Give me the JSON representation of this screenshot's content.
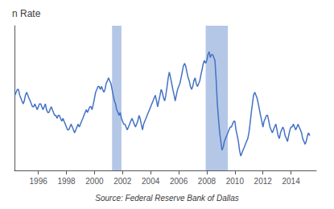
{
  "chart_data": {
    "type": "line",
    "title": "n Rate",
    "annotations": [
      "Source: Federal Reserve Bank of Dallas"
    ],
    "color": "#4472c4",
    "recession_bands": [
      [
        2001.25,
        2001.92
      ],
      [
        2007.92,
        2009.5
      ]
    ],
    "xlim": [
      1994.3,
      2015.8
    ],
    "ylim": [
      0.5,
      5.5
    ],
    "xticks": [
      1996,
      1998,
      2000,
      2002,
      2004,
      2006,
      2008,
      2010,
      2012,
      2014
    ],
    "tick_labels": "x",
    "grid": false,
    "x": [
      1994.33,
      1994.42,
      1994.5,
      1994.58,
      1994.67,
      1994.75,
      1994.83,
      1994.92,
      1995.0,
      1995.08,
      1995.17,
      1995.25,
      1995.33,
      1995.42,
      1995.5,
      1995.58,
      1995.67,
      1995.75,
      1995.83,
      1995.92,
      1996.0,
      1996.08,
      1996.17,
      1996.25,
      1996.33,
      1996.42,
      1996.5,
      1996.58,
      1996.67,
      1996.75,
      1996.83,
      1996.92,
      1997.0,
      1997.08,
      1997.17,
      1997.25,
      1997.33,
      1997.42,
      1997.5,
      1997.58,
      1997.67,
      1997.75,
      1997.83,
      1997.92,
      1998.0,
      1998.08,
      1998.17,
      1998.25,
      1998.33,
      1998.42,
      1998.5,
      1998.58,
      1998.67,
      1998.75,
      1998.83,
      1998.92,
      1999.0,
      1999.08,
      1999.17,
      1999.25,
      1999.33,
      1999.42,
      1999.5,
      1999.58,
      1999.67,
      1999.75,
      1999.83,
      1999.92,
      2000.0,
      2000.08,
      2000.17,
      2000.25,
      2000.33,
      2000.42,
      2000.5,
      2000.58,
      2000.67,
      2000.75,
      2000.83,
      2000.92,
      2001.0,
      2001.08,
      2001.17,
      2001.25,
      2001.33,
      2001.42,
      2001.5,
      2001.58,
      2001.67,
      2001.75,
      2001.83,
      2001.92,
      2002.0,
      2002.08,
      2002.17,
      2002.25,
      2002.33,
      2002.42,
      2002.5,
      2002.58,
      2002.67,
      2002.75,
      2002.83,
      2002.92,
      2003.0,
      2003.08,
      2003.17,
      2003.25,
      2003.33,
      2003.42,
      2003.5,
      2003.58,
      2003.67,
      2003.75,
      2003.83,
      2003.92,
      2004.0,
      2004.08,
      2004.17,
      2004.25,
      2004.33,
      2004.42,
      2004.5,
      2004.58,
      2004.67,
      2004.75,
      2004.83,
      2004.92,
      2005.0,
      2005.08,
      2005.17,
      2005.25,
      2005.33,
      2005.42,
      2005.5,
      2005.58,
      2005.67,
      2005.75,
      2005.83,
      2005.92,
      2006.0,
      2006.08,
      2006.17,
      2006.25,
      2006.33,
      2006.42,
      2006.5,
      2006.58,
      2006.67,
      2006.75,
      2006.83,
      2006.92,
      2007.0,
      2007.08,
      2007.17,
      2007.25,
      2007.33,
      2007.42,
      2007.5,
      2007.58,
      2007.67,
      2007.75,
      2007.83,
      2007.92,
      2008.0,
      2008.08,
      2008.17,
      2008.25,
      2008.33,
      2008.42,
      2008.5,
      2008.58,
      2008.67,
      2008.75,
      2008.83,
      2008.92,
      2009.0,
      2009.08,
      2009.17,
      2009.25,
      2009.33,
      2009.42,
      2009.5,
      2009.58,
      2009.67,
      2009.75,
      2009.83,
      2009.92,
      2010.0,
      2010.08,
      2010.17,
      2010.25,
      2010.33,
      2010.42,
      2010.5,
      2010.58,
      2010.67,
      2010.75,
      2010.83,
      2010.92,
      2011.0,
      2011.08,
      2011.17,
      2011.25,
      2011.33,
      2011.42,
      2011.5,
      2011.58,
      2011.67,
      2011.75,
      2011.83,
      2011.92,
      2012.0,
      2012.08,
      2012.17,
      2012.25,
      2012.33,
      2012.42,
      2012.5,
      2012.58,
      2012.67,
      2012.75,
      2012.83,
      2012.92,
      2013.0,
      2013.08,
      2013.17,
      2013.25,
      2013.33,
      2013.42,
      2013.5,
      2013.58,
      2013.67,
      2013.75,
      2013.83,
      2013.92,
      2014.0,
      2014.08,
      2014.17,
      2014.25,
      2014.33,
      2014.42,
      2014.5,
      2014.58,
      2014.67,
      2014.75,
      2014.83,
      2014.92,
      2015.0,
      2015.08,
      2015.17,
      2015.25,
      2015.33
    ],
    "values": [
      3.1,
      3.2,
      3.3,
      3.3,
      3.1,
      3.0,
      2.9,
      2.8,
      2.9,
      3.1,
      3.2,
      3.1,
      3.0,
      2.9,
      2.8,
      2.7,
      2.7,
      2.8,
      2.7,
      2.6,
      2.7,
      2.8,
      2.8,
      2.7,
      2.6,
      2.7,
      2.8,
      2.6,
      2.5,
      2.5,
      2.6,
      2.7,
      2.6,
      2.5,
      2.4,
      2.4,
      2.3,
      2.4,
      2.4,
      2.3,
      2.2,
      2.3,
      2.2,
      2.1,
      2.0,
      1.9,
      1.9,
      2.0,
      2.1,
      2.0,
      1.9,
      1.8,
      1.9,
      2.0,
      2.1,
      2.0,
      2.1,
      2.2,
      2.3,
      2.4,
      2.5,
      2.6,
      2.5,
      2.6,
      2.7,
      2.7,
      2.6,
      2.8,
      3.0,
      3.2,
      3.3,
      3.4,
      3.4,
      3.3,
      3.4,
      3.3,
      3.2,
      3.3,
      3.5,
      3.6,
      3.7,
      3.6,
      3.5,
      3.3,
      3.1,
      2.9,
      2.8,
      2.6,
      2.5,
      2.4,
      2.5,
      2.3,
      2.2,
      2.1,
      2.1,
      2.0,
      1.9,
      2.0,
      2.1,
      2.2,
      2.3,
      2.2,
      2.1,
      2.0,
      2.1,
      2.2,
      2.4,
      2.3,
      2.1,
      1.9,
      2.1,
      2.2,
      2.3,
      2.4,
      2.5,
      2.6,
      2.7,
      2.8,
      2.9,
      3.0,
      3.1,
      2.9,
      2.7,
      2.9,
      3.1,
      3.3,
      3.2,
      3.0,
      2.9,
      3.1,
      3.4,
      3.7,
      3.9,
      3.7,
      3.5,
      3.3,
      3.1,
      2.9,
      3.1,
      3.3,
      3.4,
      3.5,
      3.7,
      3.9,
      4.1,
      4.2,
      4.1,
      3.9,
      3.7,
      3.6,
      3.4,
      3.3,
      3.4,
      3.6,
      3.7,
      3.5,
      3.4,
      3.5,
      3.6,
      3.8,
      4.0,
      4.2,
      4.3,
      4.2,
      4.3,
      4.5,
      4.6,
      4.4,
      4.5,
      4.5,
      4.4,
      4.3,
      3.6,
      2.8,
      2.3,
      1.8,
      1.5,
      1.2,
      1.3,
      1.5,
      1.6,
      1.7,
      1.8,
      1.9,
      2.0,
      2.0,
      2.1,
      2.2,
      2.2,
      1.9,
      1.7,
      1.5,
      1.2,
      1.0,
      1.1,
      1.2,
      1.3,
      1.4,
      1.5,
      1.6,
      1.8,
      2.1,
      2.5,
      2.8,
      3.1,
      3.2,
      3.1,
      3.0,
      2.8,
      2.6,
      2.4,
      2.2,
      2.0,
      2.2,
      2.3,
      2.4,
      2.4,
      2.2,
      2.0,
      1.9,
      1.8,
      1.9,
      2.0,
      2.1,
      1.9,
      1.7,
      1.6,
      1.8,
      1.9,
      2.0,
      1.9,
      1.7,
      1.6,
      1.5,
      1.7,
      1.9,
      2.0,
      2.0,
      2.1,
      2.0,
      1.9,
      2.0,
      2.1,
      2.0,
      1.9,
      1.8,
      1.6,
      1.5,
      1.4,
      1.5,
      1.7,
      1.8,
      1.7
    ]
  }
}
